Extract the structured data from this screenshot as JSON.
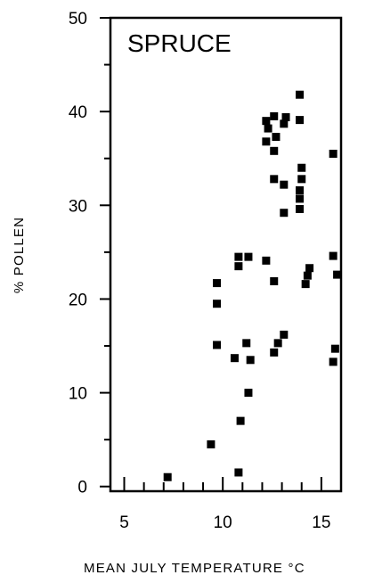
{
  "chart_data": {
    "type": "scatter",
    "title": "SPRUCE",
    "xlabel": "MEAN JULY TEMPERATURE °C",
    "ylabel": "% POLLEN",
    "xlim": [
      4.3,
      16.0
    ],
    "ylim": [
      -0.5,
      50
    ],
    "xticks": [
      5,
      10,
      15
    ],
    "yticks": [
      0,
      10,
      20,
      30,
      40,
      50
    ],
    "grid": false,
    "series": [
      {
        "points": [
          [
            7.2,
            1.0
          ],
          [
            9.4,
            4.5
          ],
          [
            10.8,
            1.5
          ],
          [
            10.9,
            7.0
          ],
          [
            11.3,
            10.0
          ],
          [
            9.7,
            15.1
          ],
          [
            10.6,
            13.7
          ],
          [
            11.4,
            13.5
          ],
          [
            11.2,
            15.3
          ],
          [
            12.6,
            14.3
          ],
          [
            12.8,
            15.3
          ],
          [
            13.1,
            16.2
          ],
          [
            15.6,
            13.3
          ],
          [
            15.7,
            14.7
          ],
          [
            9.7,
            19.5
          ],
          [
            9.7,
            21.7
          ],
          [
            10.8,
            23.5
          ],
          [
            10.8,
            24.5
          ],
          [
            11.3,
            24.5
          ],
          [
            12.2,
            24.1
          ],
          [
            12.6,
            21.9
          ],
          [
            14.2,
            21.6
          ],
          [
            14.3,
            22.5
          ],
          [
            14.4,
            23.3
          ],
          [
            15.6,
            24.6
          ],
          [
            15.8,
            22.6
          ],
          [
            13.1,
            29.2
          ],
          [
            13.9,
            29.6
          ],
          [
            13.9,
            30.7
          ],
          [
            13.9,
            31.6
          ],
          [
            13.1,
            32.2
          ],
          [
            12.6,
            32.8
          ],
          [
            14.0,
            32.8
          ],
          [
            14.0,
            34.0
          ],
          [
            15.6,
            35.5
          ],
          [
            12.6,
            35.8
          ],
          [
            12.2,
            36.8
          ],
          [
            12.3,
            38.2
          ],
          [
            12.7,
            37.3
          ],
          [
            12.2,
            39.0
          ],
          [
            12.6,
            39.5
          ],
          [
            13.1,
            38.7
          ],
          [
            13.2,
            39.4
          ],
          [
            13.9,
            39.1
          ],
          [
            13.9,
            41.8
          ]
        ]
      }
    ]
  }
}
